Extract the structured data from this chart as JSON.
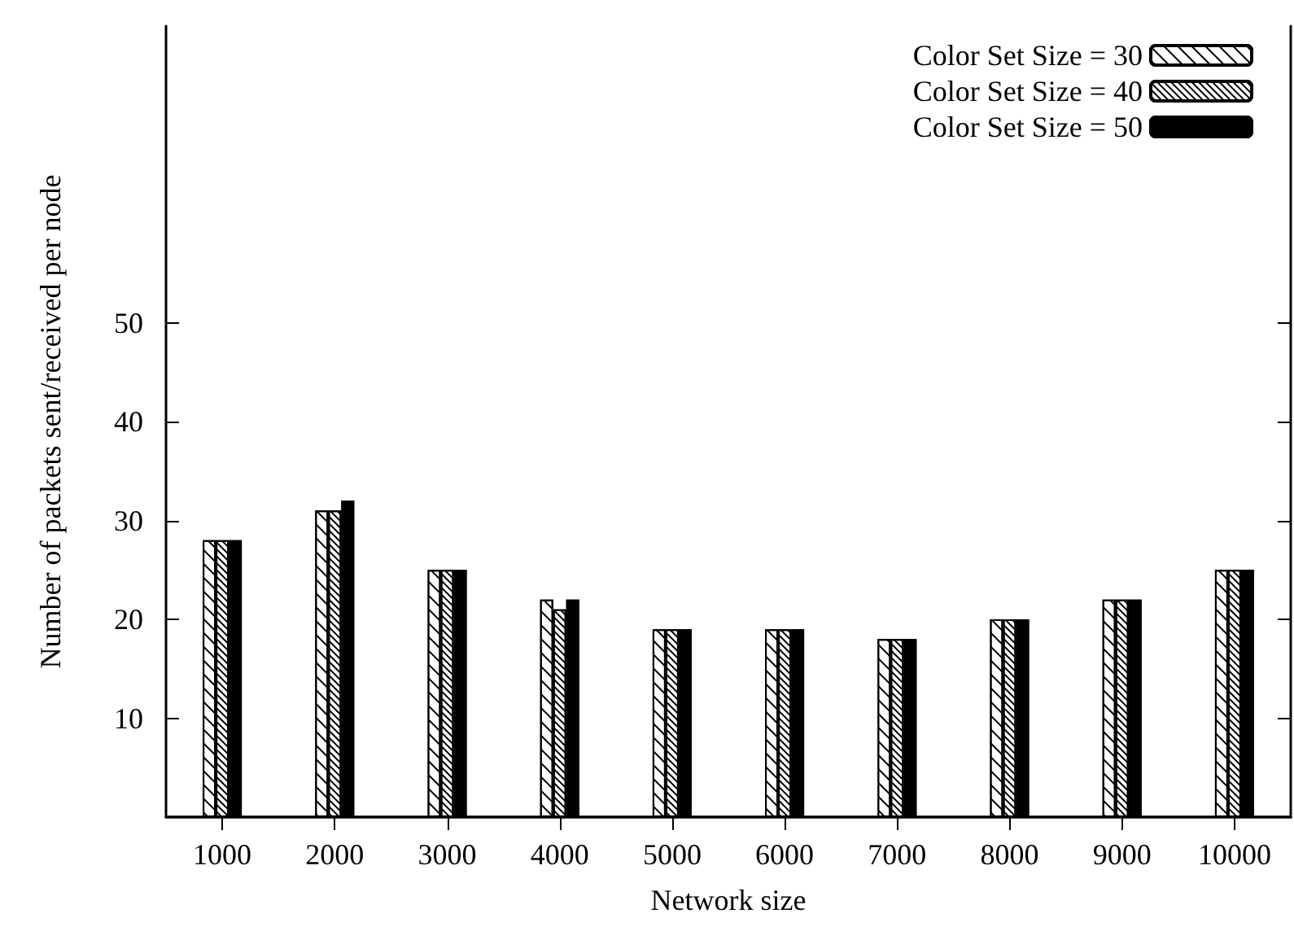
{
  "chart_data": {
    "type": "bar",
    "xlabel": "Network size",
    "ylabel": "Number of packets sent/received per node",
    "categories": [
      "1000",
      "2000",
      "3000",
      "4000",
      "5000",
      "6000",
      "7000",
      "8000",
      "9000",
      "10000"
    ],
    "series": [
      {
        "name": "Color Set Size = 30",
        "color": "#ffffff",
        "values": [
          28,
          31,
          25,
          22,
          19,
          19,
          18,
          20,
          22,
          25
        ]
      },
      {
        "name": "Color Set Size = 40",
        "color": "#ffffff",
        "values": [
          28,
          31,
          25,
          21,
          19,
          19,
          18,
          20,
          22,
          25
        ]
      },
      {
        "name": "Color Set Size = 50",
        "color": "#000000",
        "values": [
          28,
          32,
          25,
          22,
          19,
          19,
          18,
          20,
          22,
          25
        ]
      }
    ],
    "ylim": [
      0,
      80
    ],
    "yticks": [
      10,
      20,
      30,
      40,
      50
    ],
    "grid": false,
    "legend": "top right"
  }
}
